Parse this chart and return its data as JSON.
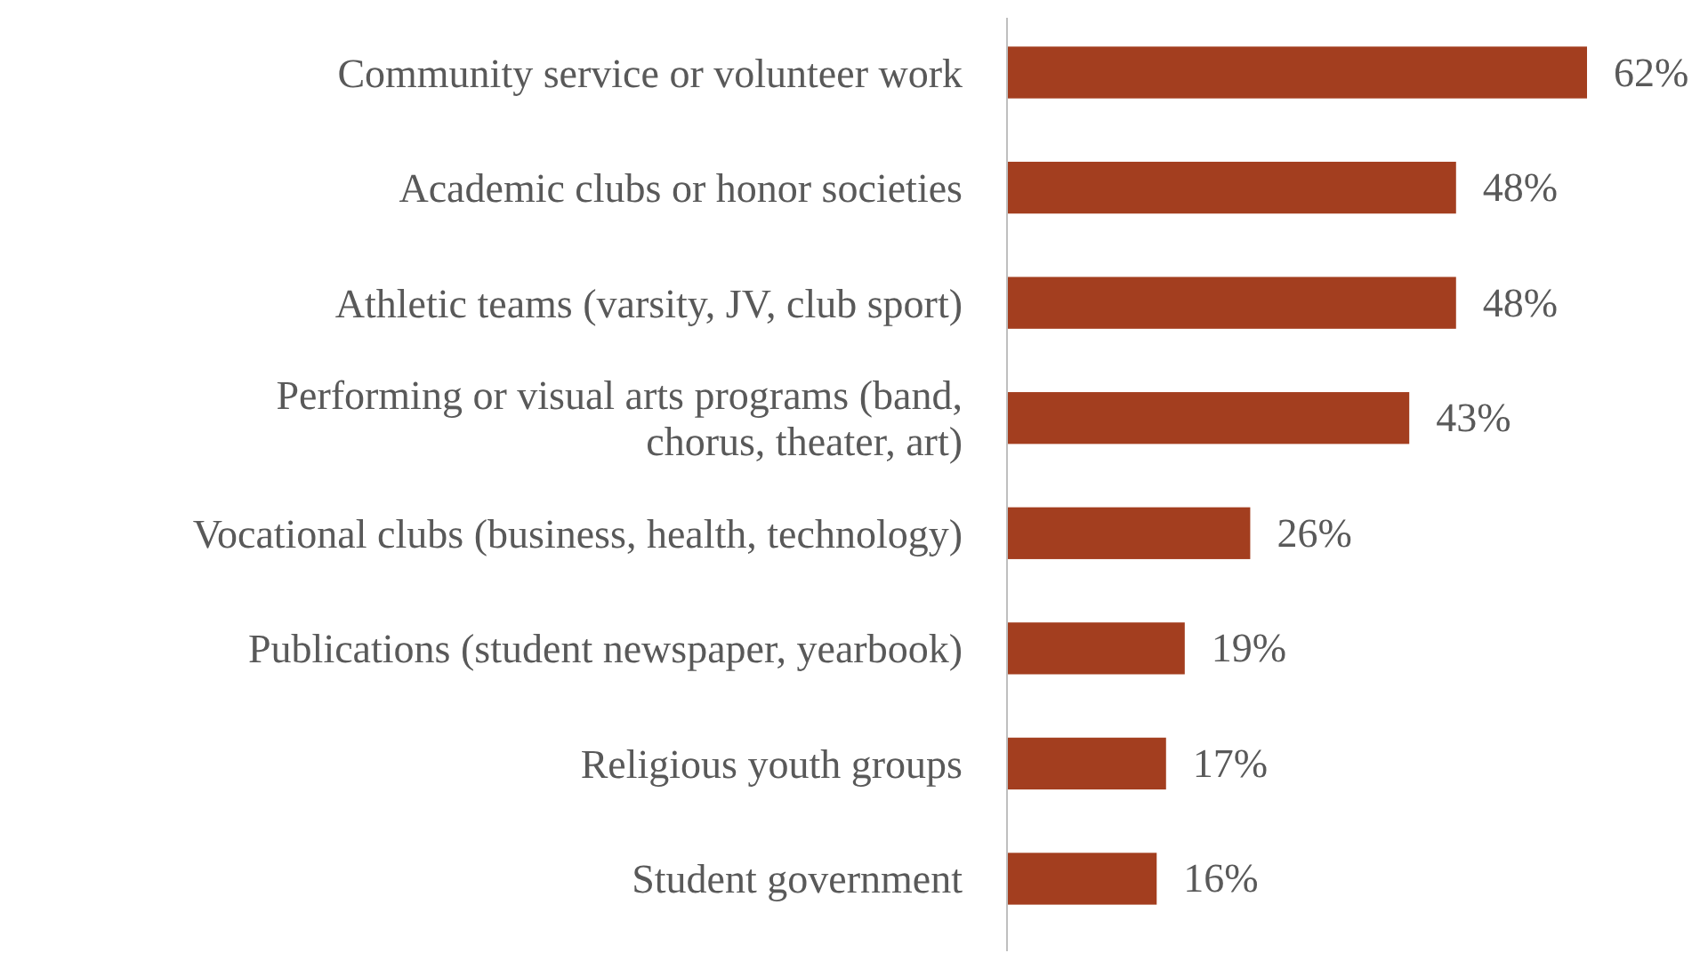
{
  "chart_data": {
    "type": "bar",
    "orientation": "horizontal",
    "categories": [
      "Community service or volunteer work",
      "Academic clubs or honor societies",
      "Athletic teams (varsity, JV, club sport)",
      "Performing or visual arts programs (band, chorus, theater, art)",
      "Vocational clubs (business, health, technology)",
      "Publications (student newspaper, yearbook)",
      "Religious youth groups",
      "Student government"
    ],
    "values": [
      62,
      48,
      48,
      43,
      26,
      19,
      17,
      16
    ],
    "value_labels": [
      "62%",
      "48%",
      "48%",
      "43%",
      "26%",
      "19%",
      "17%",
      "16%"
    ],
    "color": "#a33e1f"
  }
}
